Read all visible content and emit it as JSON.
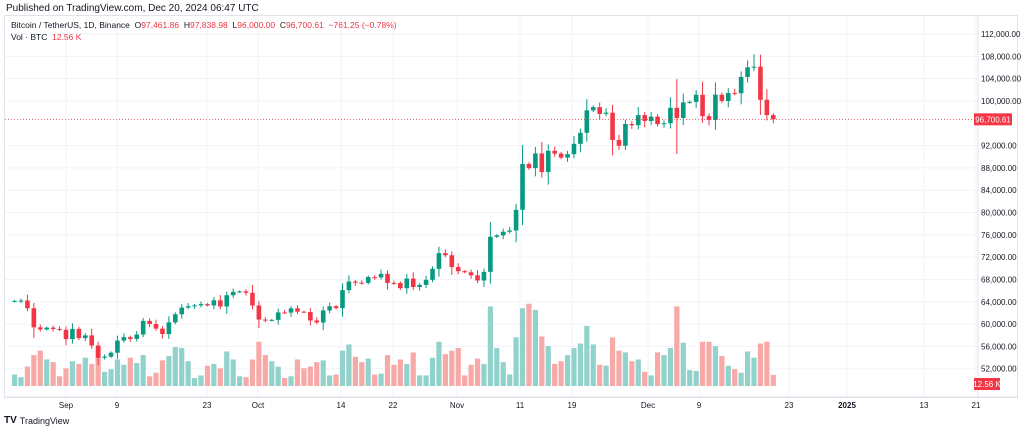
{
  "published": "Published on TradingView.com, Dec 20, 2024 06:47 UTC",
  "legend": {
    "symbol": "Bitcoin / TetherUS, 1D, Binance",
    "o_label": "O",
    "o": "97,461.86",
    "h_label": "H",
    "h": "97,838.98",
    "l_label": "L",
    "l": "96,000.00",
    "c_label": "C",
    "c": "96,700.61",
    "change": "−761.25 (−0.78%)",
    "vol_label": "Vol · BTC",
    "vol": "12.56 K"
  },
  "footer_logo": "TradingView",
  "colors": {
    "up": "#089981",
    "down": "#f23645",
    "vol_up": "#92d2cc",
    "vol_down": "#f7a9a7"
  },
  "chart_data": {
    "type": "candlestick",
    "title": "Bitcoin / TetherUS, 1D, Binance",
    "first_date": "2024-08-24",
    "last_date": "2024-12-20",
    "ylim": [
      48000,
      112000
    ],
    "y_ticks": [
      "112,000.00",
      "108,000.00",
      "104,000.00",
      "100,000.00",
      "92,000.00",
      "88,000.00",
      "84,000.00",
      "80,000.00",
      "76,000.00",
      "72,000.00",
      "68,000.00",
      "64,000.00",
      "60,000.00",
      "56,000.00",
      "52,000.00"
    ],
    "x_ticks": [
      "Sep",
      "9",
      "23",
      "Oct",
      "14",
      "22",
      "Nov",
      "11",
      "19",
      "Dec",
      "9",
      "23",
      "2025",
      "13",
      "21"
    ],
    "last_price_label": "96,700.61",
    "last_volume_label": "12.56 K",
    "close": [
      64157,
      64220,
      62834,
      59415,
      59034,
      59359,
      59119,
      58969,
      57301,
      59132,
      57487,
      57970,
      56160,
      53962,
      54160,
      54869,
      57040,
      57650,
      57343,
      58127,
      60571,
      60005,
      59182,
      58213,
      60309,
      61759,
      62947,
      63201,
      63348,
      63578,
      63339,
      64262,
      63152,
      65173,
      65769,
      65858,
      65602,
      63327,
      60805,
      60649,
      60752,
      62086,
      62058,
      62819,
      62224,
      62160,
      60636,
      60274,
      62445,
      63193,
      62852,
      66085,
      67620,
      67421,
      67378,
      68428,
      68362,
      69001,
      67368,
      67361,
      66432,
      68162,
      66642,
      67014,
      67930,
      69908,
      72720,
      72339,
      70215,
      69482,
      69289,
      68742,
      67811,
      69359,
      75639,
      75904,
      76545,
      76778,
      80474,
      88701,
      87955,
      90585,
      87250,
      91066,
      90558,
      89845,
      90464,
      92310,
      94286,
      98317,
      98892,
      97672,
      97900,
      93010,
      91965,
      95863,
      95643,
      97460,
      96407,
      97185,
      95840,
      96002,
      98768,
      96945,
      99740,
      99831,
      101109,
      97276,
      96593,
      101125,
      100000,
      101417,
      101372,
      104298,
      106029,
      106140,
      100204,
      97461.86,
      96700.61
    ],
    "first_open": 64037,
    "high_notes": {
      "2024-12-05": [
        103900,
        90500
      ],
      "2024-12-17": [
        108353,
        105321
      ],
      "2024-12-20": [
        97838.98,
        96000
      ]
    },
    "volume_k": [
      13,
      10,
      22,
      35,
      40,
      30,
      27,
      11,
      20,
      28,
      25,
      32,
      25,
      44,
      16,
      19,
      30,
      24,
      32,
      26,
      35,
      11,
      15,
      29,
      34,
      44,
      43,
      28,
      9,
      12,
      23,
      25,
      20,
      39,
      30,
      11,
      10,
      30,
      50,
      35,
      28,
      22,
      9,
      11,
      30,
      20,
      22,
      27,
      29,
      12,
      13,
      40,
      47,
      33,
      27,
      31,
      13,
      14,
      35,
      24,
      30,
      25,
      38,
      12,
      12,
      32,
      50,
      36,
      40,
      43,
      12,
      24,
      31,
      25,
      90,
      43,
      27,
      13,
      55,
      88,
      93,
      86,
      56,
      45,
      25,
      28,
      35,
      43,
      48,
      68,
      47,
      24,
      23,
      55,
      40,
      38,
      28,
      30,
      16,
      12,
      38,
      35,
      43,
      90,
      49,
      18,
      17,
      50,
      50,
      45,
      34,
      23,
      19,
      15,
      39,
      32,
      48,
      50,
      12.56
    ]
  }
}
